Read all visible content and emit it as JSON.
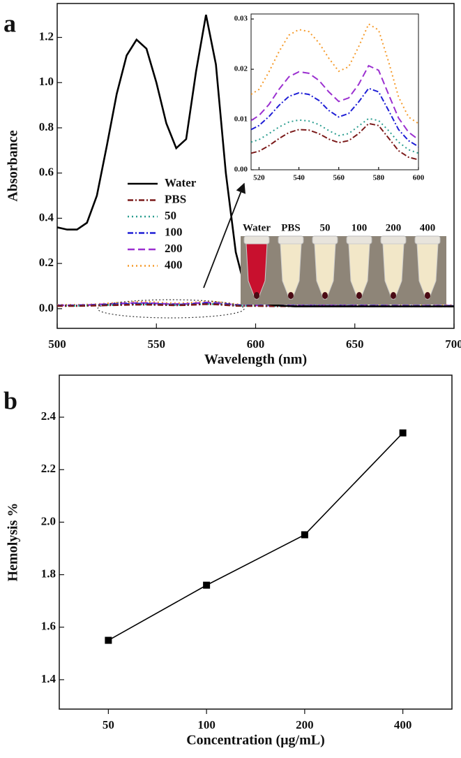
{
  "chart_data": [
    {
      "type": "line",
      "panel_label": "a",
      "xlabel": "Wavelength (nm)",
      "ylabel": "Absorbance",
      "xlim": [
        500,
        700
      ],
      "xticks": [
        500,
        550,
        600,
        650,
        700
      ],
      "ylim": [
        -0.087,
        1.35
      ],
      "yticks": [
        {
          "value": 0,
          "label": "0.0"
        },
        0.2,
        0.4,
        0.6,
        0.8,
        {
          "value": 1,
          "label": "1.0"
        },
        1.2
      ],
      "x": [
        500,
        505,
        510,
        515,
        520,
        525,
        530,
        535,
        540,
        545,
        550,
        555,
        560,
        565,
        570,
        575,
        580,
        585,
        590,
        595,
        600,
        610,
        620,
        650,
        700
      ],
      "series": [
        {
          "name": "Water",
          "color": "#000000",
          "dash": "solid",
          "values": [
            0.36,
            0.35,
            0.35,
            0.38,
            0.5,
            0.72,
            0.95,
            1.12,
            1.19,
            1.15,
            1.0,
            0.82,
            0.71,
            0.75,
            1.05,
            1.3,
            1.08,
            0.6,
            0.25,
            0.08,
            0.03,
            0.015,
            0.01,
            0.01,
            0.01
          ]
        },
        {
          "name": "PBS",
          "color": "#7b1a1a",
          "dash": "dashdot",
          "values": [
            0.012,
            0.012,
            0.012,
            0.013,
            0.014,
            0.015,
            0.016,
            0.017,
            0.018,
            0.018,
            0.017,
            0.016,
            0.015,
            0.016,
            0.018,
            0.02,
            0.019,
            0.016,
            0.013,
            0.012,
            0.012,
            0.011,
            0.011,
            0.011,
            0.01
          ]
        },
        {
          "name": "50",
          "color": "#2a9d8f",
          "dash": "dotted",
          "values": [
            0.013,
            0.013,
            0.013,
            0.014,
            0.015,
            0.016,
            0.017,
            0.018,
            0.019,
            0.019,
            0.018,
            0.017,
            0.016,
            0.017,
            0.019,
            0.021,
            0.02,
            0.017,
            0.014,
            0.013,
            0.013,
            0.012,
            0.012,
            0.012,
            0.011
          ]
        },
        {
          "name": "100",
          "color": "#1f1fd6",
          "dash": "dashdot",
          "values": [
            0.014,
            0.014,
            0.014,
            0.015,
            0.016,
            0.018,
            0.02,
            0.021,
            0.022,
            0.022,
            0.021,
            0.019,
            0.018,
            0.019,
            0.021,
            0.024,
            0.022,
            0.019,
            0.016,
            0.014,
            0.014,
            0.013,
            0.013,
            0.013,
            0.012
          ]
        },
        {
          "name": "200",
          "color": "#9b30d0",
          "dash": "dashed",
          "values": [
            0.015,
            0.015,
            0.015,
            0.016,
            0.018,
            0.02,
            0.022,
            0.024,
            0.025,
            0.025,
            0.023,
            0.021,
            0.02,
            0.021,
            0.024,
            0.027,
            0.025,
            0.021,
            0.017,
            0.015,
            0.015,
            0.014,
            0.014,
            0.014,
            0.013
          ]
        },
        {
          "name": "400",
          "color": "#f59a2a",
          "dash": "dotted",
          "values": [
            0.017,
            0.017,
            0.017,
            0.018,
            0.02,
            0.023,
            0.026,
            0.028,
            0.03,
            0.03,
            0.028,
            0.025,
            0.024,
            0.025,
            0.028,
            0.032,
            0.03,
            0.025,
            0.02,
            0.018,
            0.017,
            0.016,
            0.016,
            0.016,
            0.015
          ]
        }
      ],
      "photo": {
        "labels": [
          "Water",
          "PBS",
          "50",
          "100",
          "200",
          "400"
        ]
      }
    },
    {
      "type": "line",
      "xlim": [
        516,
        600
      ],
      "xticks": [
        520,
        540,
        560,
        580,
        600
      ],
      "ylim": [
        0,
        0.031
      ],
      "yticks": [
        {
          "value": 0,
          "label": "0.00"
        },
        0.01,
        0.02,
        0.03
      ],
      "x": [
        516,
        520,
        525,
        530,
        535,
        540,
        545,
        550,
        555,
        560,
        565,
        570,
        575,
        580,
        585,
        590,
        595,
        600
      ],
      "series": [
        {
          "name": "PBS",
          "color": "#7b1a1a",
          "dash": "dashdot",
          "values": [
            0.0033,
            0.0037,
            0.0048,
            0.0062,
            0.0074,
            0.008,
            0.0079,
            0.0072,
            0.0061,
            0.0054,
            0.0058,
            0.0072,
            0.0092,
            0.0088,
            0.0063,
            0.0038,
            0.0025,
            0.002
          ]
        },
        {
          "name": "50",
          "color": "#2a9d8f",
          "dash": "dotted",
          "values": [
            0.0055,
            0.006,
            0.0072,
            0.0085,
            0.0095,
            0.0099,
            0.0097,
            0.009,
            0.0078,
            0.0068,
            0.0072,
            0.0087,
            0.0102,
            0.0098,
            0.0078,
            0.0055,
            0.004,
            0.0033
          ]
        },
        {
          "name": "100",
          "color": "#1f1fd6",
          "dash": "dashdot",
          "values": [
            0.008,
            0.0088,
            0.0106,
            0.0128,
            0.0146,
            0.0153,
            0.015,
            0.0138,
            0.0118,
            0.0105,
            0.0112,
            0.0135,
            0.0162,
            0.0155,
            0.0118,
            0.008,
            0.0058,
            0.0046
          ]
        },
        {
          "name": "200",
          "color": "#9b30d0",
          "dash": "dashed",
          "values": [
            0.0098,
            0.0108,
            0.013,
            0.016,
            0.0185,
            0.0195,
            0.0192,
            0.0178,
            0.0155,
            0.0136,
            0.0143,
            0.017,
            0.0207,
            0.0198,
            0.015,
            0.0103,
            0.0075,
            0.006
          ]
        },
        {
          "name": "400",
          "color": "#f59a2a",
          "dash": "dotted",
          "values": [
            0.015,
            0.016,
            0.0195,
            0.0235,
            0.0268,
            0.0279,
            0.0275,
            0.0253,
            0.0222,
            0.0196,
            0.0205,
            0.0245,
            0.029,
            0.0278,
            0.0215,
            0.0145,
            0.0105,
            0.0092
          ]
        }
      ]
    },
    {
      "type": "line",
      "panel_label": "b",
      "xlabel": "Concentration (μg/mL)",
      "ylabel": "Hemolysis %",
      "categories": [
        "50",
        "100",
        "200",
        "400"
      ],
      "values": [
        1.55,
        1.76,
        1.952,
        2.34
      ],
      "color": "#000000",
      "ylim": [
        1.288,
        2.56
      ],
      "yticks": [
        1.4,
        1.6,
        1.8,
        {
          "value": 2,
          "label": "2.0"
        },
        2.2,
        2.4
      ]
    }
  ]
}
